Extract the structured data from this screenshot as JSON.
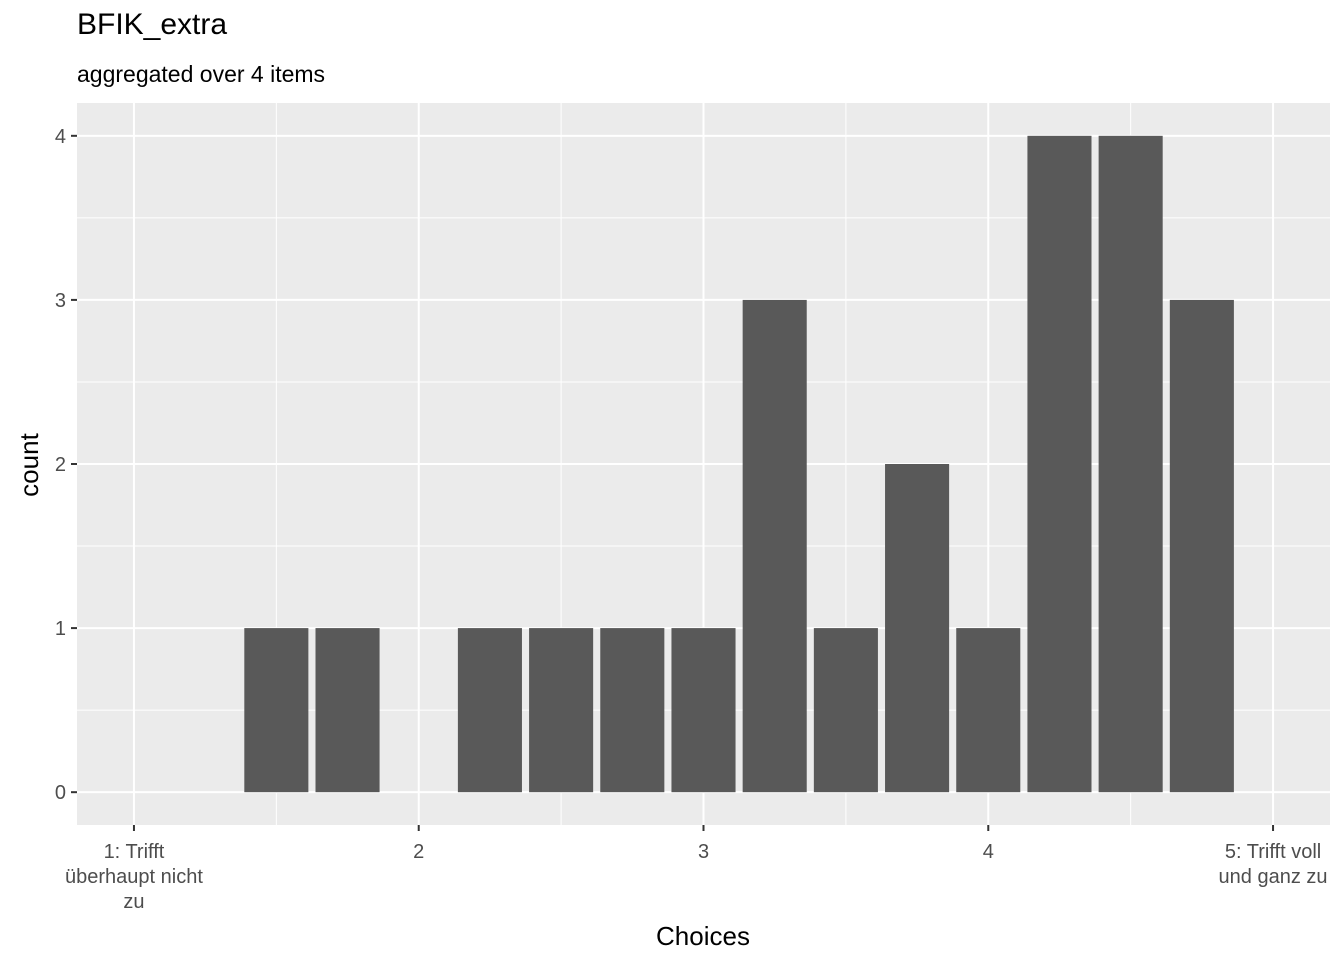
{
  "chart_data": {
    "type": "bar",
    "title": "BFIK_extra",
    "subtitle": "aggregated over 4 items",
    "xlabel": "Choices",
    "ylabel": "count",
    "x": [
      1.5,
      1.75,
      2.25,
      2.5,
      2.75,
      3,
      3.25,
      3.5,
      3.75,
      4,
      4.25,
      4.5,
      4.75
    ],
    "values": [
      1,
      1,
      1,
      1,
      1,
      1,
      3,
      1,
      2,
      1,
      4,
      4,
      3
    ],
    "bar_width": 0.225,
    "xlim": [
      0.8,
      5.2
    ],
    "ylim": [
      -0.2,
      4.2
    ],
    "x_ticks": [
      {
        "value": 1,
        "label": "1: Trifft\nüberhaupt nicht\nzu"
      },
      {
        "value": 2,
        "label": "2"
      },
      {
        "value": 3,
        "label": "3"
      },
      {
        "value": 4,
        "label": "4"
      },
      {
        "value": 5,
        "label": "5: Trifft voll\nund ganz zu"
      }
    ],
    "y_ticks": [
      0,
      1,
      2,
      3,
      4
    ],
    "grid": true,
    "colors": {
      "panel": "#EBEBEB",
      "grid": "#FFFFFF",
      "bar": "#595959",
      "tick_text": "#4D4D4D",
      "axis_ticks": "#333333"
    }
  }
}
